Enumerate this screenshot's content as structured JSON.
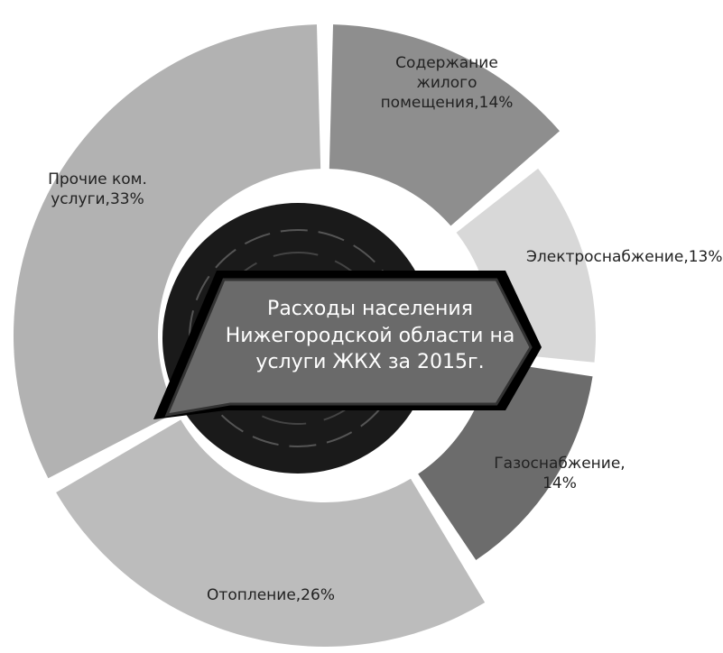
{
  "chart_data": {
    "type": "pie",
    "title": "Расходы населения Нижегородской области на услуги ЖКХ за 2015г.",
    "labels": [
      "Содержание жилого помещения,14%",
      "Электроснабжение,13%",
      "Газоснабжение, 14%",
      "Отопление,26%",
      "Прочие ком. услуги,33%"
    ],
    "values": [
      14,
      13,
      14,
      26,
      33
    ],
    "colors": [
      "#8e8e8e",
      "#d8d8d8",
      "#6c6c6c",
      "#bcbcbc",
      "#b2b2b2"
    ]
  }
}
